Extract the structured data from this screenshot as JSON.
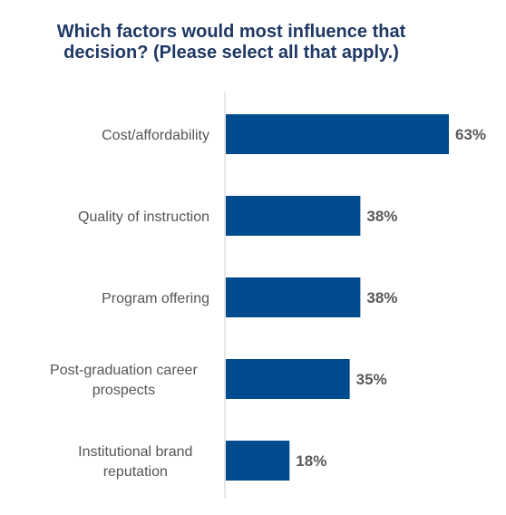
{
  "chart_data": {
    "type": "bar",
    "orientation": "horizontal",
    "title_lines": [
      "Which factors would most influence that",
      "decision? (Please select all that apply.)"
    ],
    "categories": [
      [
        "Cost/affordability"
      ],
      [
        "Quality of instruction"
      ],
      [
        "Program offering"
      ],
      [
        "Post-graduation career",
        "prospects"
      ],
      [
        "Institutional brand",
        "reputation"
      ]
    ],
    "values": [
      63,
      38,
      38,
      35,
      18
    ],
    "value_labels": [
      "63%",
      "38%",
      "38%",
      "35%",
      "18%"
    ],
    "xlim": [
      0,
      63
    ],
    "bar_color": "#004b8d",
    "axis_color": "#cccccc",
    "grid": false,
    "legend": "none"
  }
}
